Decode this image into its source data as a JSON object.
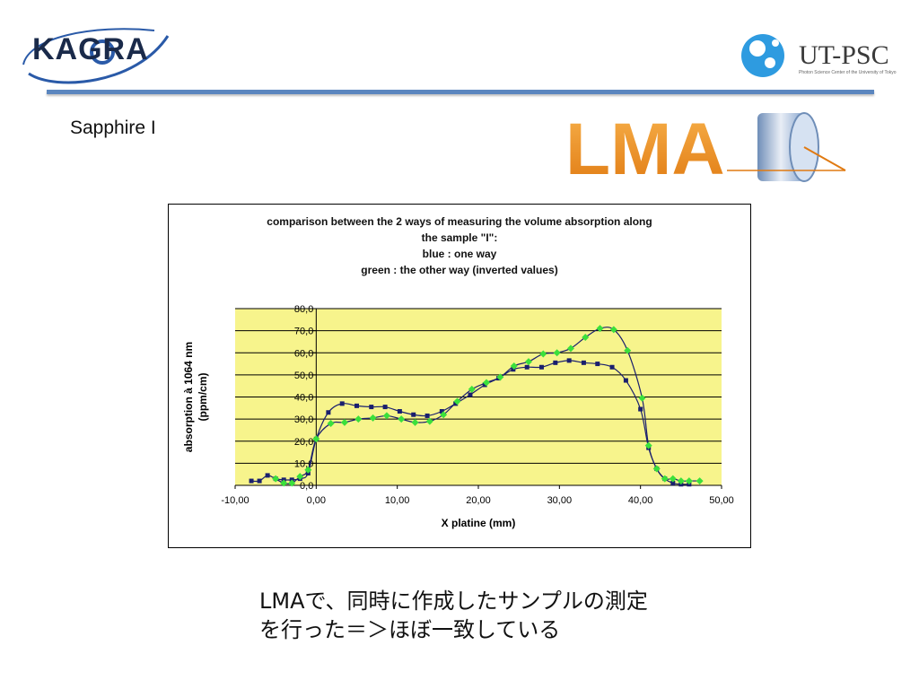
{
  "header": {
    "kagra_logo_text": "KAGRA",
    "utpsc_logo_text": "UT-PSC",
    "utpsc_subtitle": "Photon Science Center of the University of Tokyo",
    "lma_logo_text": "LMA"
  },
  "slide": {
    "title": "Sapphire I",
    "footer_line1": "LMAで、同時に作成したサンプルの測定",
    "footer_line2": "を行った＝＞ほぼ一致している"
  },
  "chart_data": {
    "type": "line",
    "title_lines": [
      "comparison between the 2 ways of measuring the volume absorption along",
      "the sample \"I\":",
      "blue : one way",
      "green : the other way (inverted values)"
    ],
    "xlabel": "X platine (mm)",
    "ylabel_lines": [
      "absorption à 1064 nm",
      "(ppm/cm)"
    ],
    "xlim": [
      -10,
      50
    ],
    "ylim": [
      0,
      80
    ],
    "x_ticks": [
      "-10,00",
      "0,00",
      "10,00",
      "20,00",
      "30,00",
      "40,00",
      "50,00"
    ],
    "y_ticks": [
      "0,0",
      "10,0",
      "20,0",
      "30,0",
      "40,0",
      "50,0",
      "60,0",
      "70,0",
      "80,0"
    ],
    "plot_background": "#f7f48c",
    "grid": true,
    "series": [
      {
        "color": "#1a1f6e",
        "marker": "square",
        "points": [
          [
            -8,
            2
          ],
          [
            -7,
            2
          ],
          [
            -6,
            4.5
          ],
          [
            -5,
            3
          ],
          [
            -4,
            2.5
          ],
          [
            -3,
            2.5
          ],
          [
            -2,
            3
          ],
          [
            -1,
            5.5
          ],
          [
            0,
            21
          ],
          [
            1.5,
            33
          ],
          [
            3.2,
            37
          ],
          [
            5,
            36
          ],
          [
            6.8,
            35.5
          ],
          [
            8.5,
            35.5
          ],
          [
            10.3,
            33.5
          ],
          [
            12,
            32
          ],
          [
            13.7,
            31.5
          ],
          [
            15.5,
            33.5
          ],
          [
            17.2,
            37
          ],
          [
            19,
            41
          ],
          [
            20.8,
            45.5
          ],
          [
            22.5,
            48.5
          ],
          [
            24.3,
            52.5
          ],
          [
            26,
            53.5
          ],
          [
            27.8,
            53.5
          ],
          [
            29.5,
            55.5
          ],
          [
            31.2,
            56.5
          ],
          [
            33,
            55.5
          ],
          [
            34.7,
            55
          ],
          [
            36.5,
            53.5
          ],
          [
            38.2,
            47.5
          ],
          [
            40,
            34.5
          ],
          [
            41,
            17
          ],
          [
            42,
            7.5
          ],
          [
            43,
            3
          ],
          [
            44,
            1
          ],
          [
            45,
            0.5
          ],
          [
            46,
            0.5
          ]
        ]
      },
      {
        "color": "#3be03b",
        "marker": "diamond",
        "points": [
          [
            -5,
            3
          ],
          [
            -4,
            1
          ],
          [
            -3,
            1
          ],
          [
            -2,
            4
          ],
          [
            -1,
            7
          ],
          [
            0,
            21
          ],
          [
            1.8,
            28
          ],
          [
            3.5,
            28.5
          ],
          [
            5.2,
            30
          ],
          [
            7,
            30.5
          ],
          [
            8.7,
            31.5
          ],
          [
            10.5,
            30
          ],
          [
            12.2,
            28.5
          ],
          [
            14,
            29
          ],
          [
            15.7,
            32
          ],
          [
            17.4,
            38
          ],
          [
            19.2,
            43.5
          ],
          [
            21,
            46.5
          ],
          [
            22.7,
            49
          ],
          [
            24.4,
            54
          ],
          [
            26.2,
            56
          ],
          [
            28,
            59.5
          ],
          [
            29.7,
            60
          ],
          [
            31.4,
            62
          ],
          [
            33.2,
            67
          ],
          [
            35,
            71
          ],
          [
            36.7,
            70.5
          ],
          [
            38.4,
            61
          ],
          [
            40.2,
            39.5
          ],
          [
            41,
            18
          ],
          [
            42,
            7.5
          ],
          [
            43,
            3
          ],
          [
            44,
            3
          ],
          [
            45,
            2
          ],
          [
            46,
            2
          ],
          [
            47.3,
            2
          ]
        ]
      }
    ]
  }
}
